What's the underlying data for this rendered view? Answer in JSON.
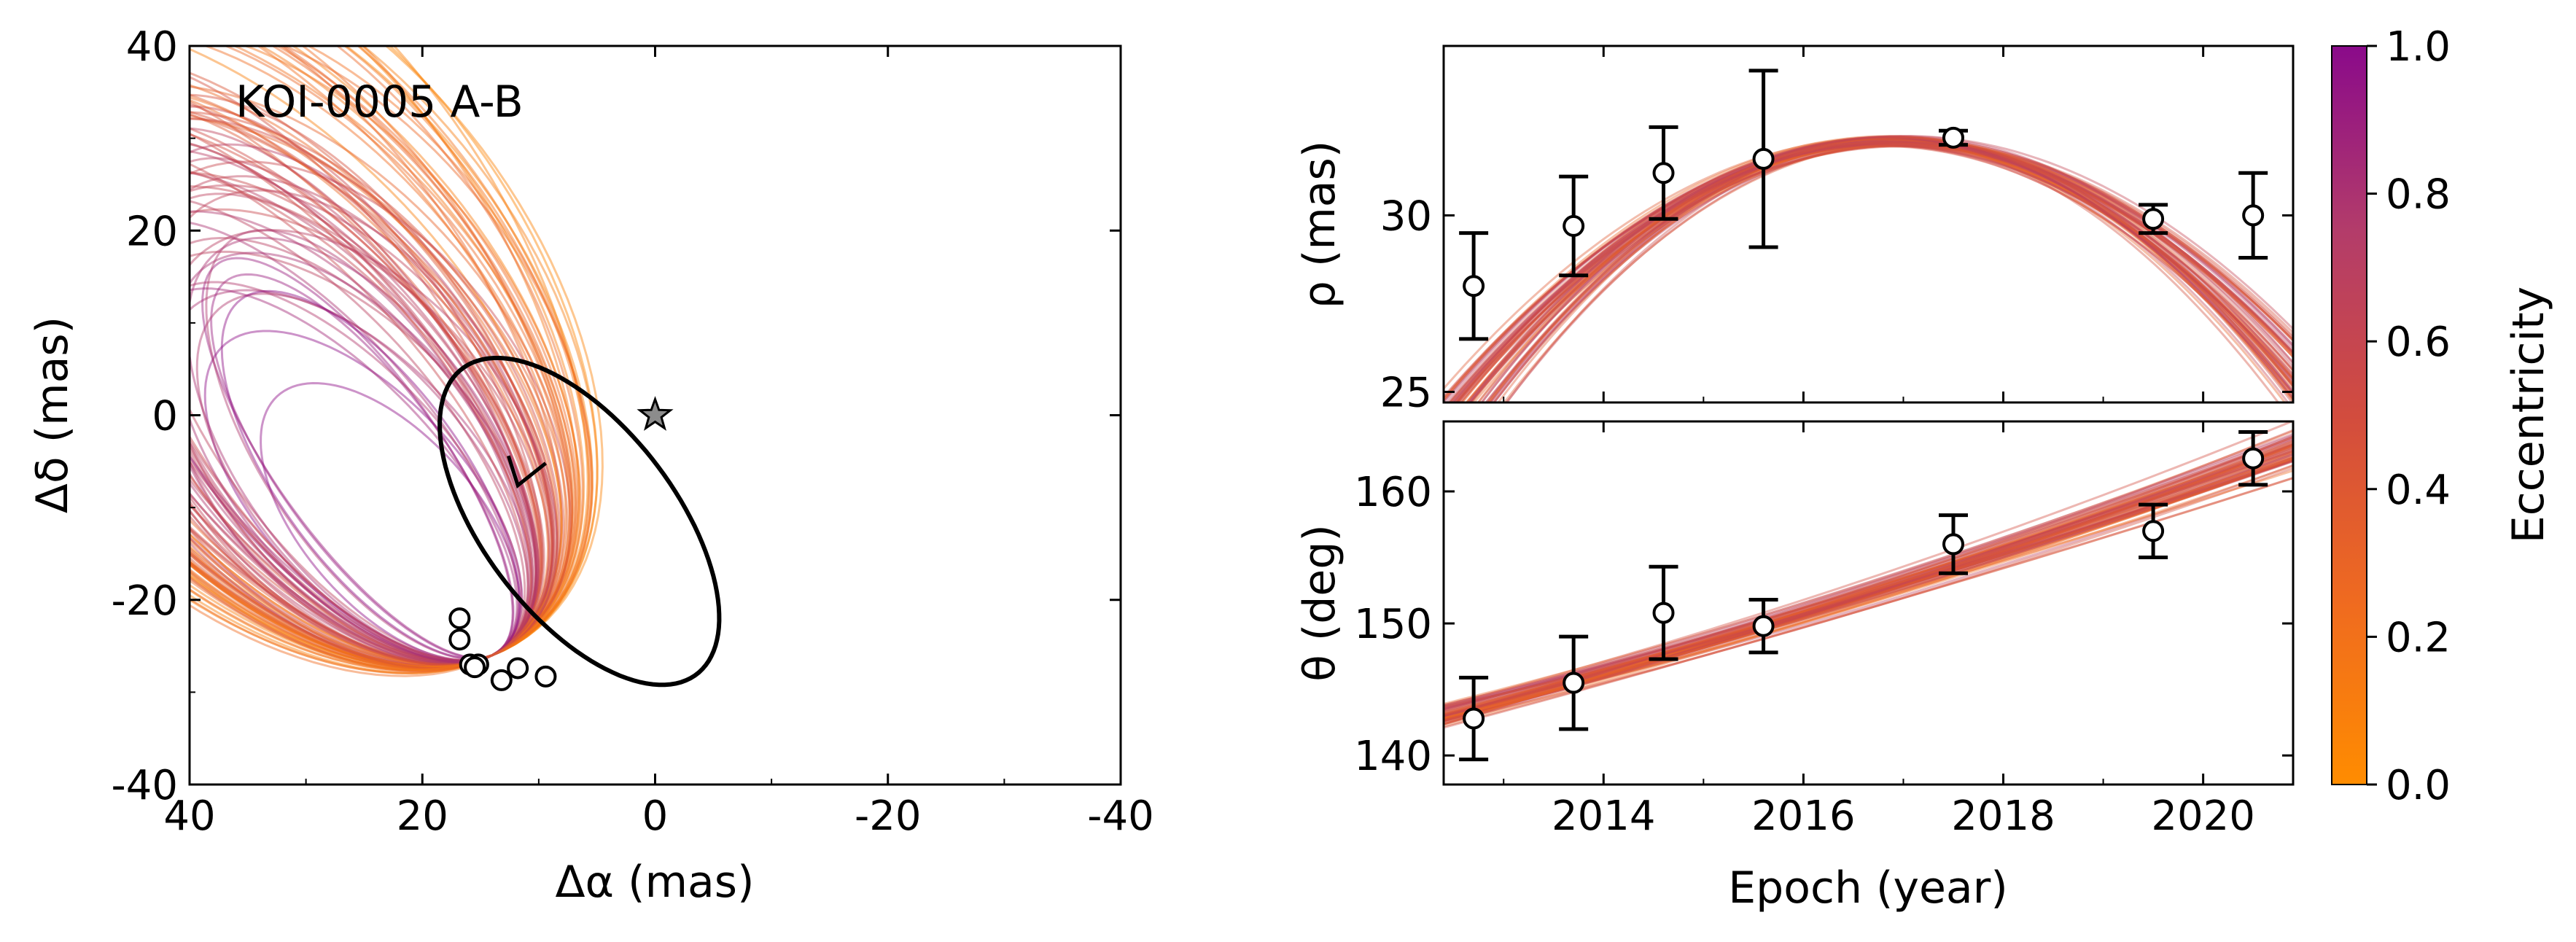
{
  "figure": {
    "colors": {
      "axes": "#000000",
      "best_fit": "#000000",
      "marker_fill": "#ffffff",
      "marker_edge": "#000000",
      "star_fill": "#8c8c8c"
    }
  },
  "chart_data": [
    {
      "id": "orbit-plot",
      "type": "line",
      "title": "",
      "annotation": "KOI-0005 A-B",
      "xlabel": "Δα (mas)",
      "ylabel": "Δδ (mas)",
      "xlim": [
        40,
        -40
      ],
      "ylim": [
        -40,
        40
      ],
      "xticks": [
        40,
        20,
        0,
        -20,
        -40
      ],
      "yticks": [
        40,
        20,
        0,
        -20,
        -40
      ],
      "grid": false,
      "star": {
        "x": 0,
        "y": 0
      },
      "direction": "counter-clockwise",
      "best_fit_orbit": {
        "center_x": 6.5,
        "center_y": -11.5,
        "semi_major": 19.5,
        "semi_minor": 8.8,
        "rotation_deg": 62
      },
      "orbit_sample_count": 80,
      "observations": [
        {
          "x": 16.8,
          "y": -22.0
        },
        {
          "x": 16.8,
          "y": -24.3
        },
        {
          "x": 15.9,
          "y": -27.0
        },
        {
          "x": 15.2,
          "y": -27.0
        },
        {
          "x": 15.5,
          "y": -27.3
        },
        {
          "x": 13.2,
          "y": -28.7
        },
        {
          "x": 11.8,
          "y": -27.4
        },
        {
          "x": 9.4,
          "y": -28.3
        }
      ]
    },
    {
      "id": "separation-plot",
      "type": "line",
      "title": "",
      "xlabel": "",
      "ylabel": "ρ (mas)",
      "xlim": [
        2012.4,
        2020.9
      ],
      "ylim": [
        24.7,
        34.8
      ],
      "xticks": [
        2014,
        2016,
        2018,
        2020
      ],
      "yticks": [
        25,
        30
      ],
      "grid": false,
      "model_peak": {
        "x": 2016.9,
        "y": 32.1
      },
      "observations": [
        {
          "x": 2012.7,
          "y": 28.0,
          "err": 1.5
        },
        {
          "x": 2013.7,
          "y": 29.7,
          "err": 1.4
        },
        {
          "x": 2014.6,
          "y": 31.2,
          "err": 1.3
        },
        {
          "x": 2015.6,
          "y": 31.6,
          "err": 2.5
        },
        {
          "x": 2017.5,
          "y": 32.2,
          "err": 0.2
        },
        {
          "x": 2019.5,
          "y": 29.9,
          "err": 0.4
        },
        {
          "x": 2020.5,
          "y": 30.0,
          "err": 1.2
        }
      ]
    },
    {
      "id": "position-angle-plot",
      "type": "line",
      "title": "",
      "xlabel": "Epoch (year)",
      "ylabel": "θ (deg)",
      "xlim": [
        2012.4,
        2020.9
      ],
      "ylim": [
        137.8,
        165.3
      ],
      "xticks": [
        2014,
        2016,
        2018,
        2020
      ],
      "yticks": [
        140,
        150,
        160
      ],
      "grid": false,
      "observations": [
        {
          "x": 2012.7,
          "y": 142.8,
          "err": 3.1
        },
        {
          "x": 2013.7,
          "y": 145.5,
          "err": 3.5
        },
        {
          "x": 2014.6,
          "y": 150.8,
          "err": 3.5
        },
        {
          "x": 2015.6,
          "y": 149.8,
          "err": 2.0
        },
        {
          "x": 2017.5,
          "y": 156.0,
          "err": 2.2
        },
        {
          "x": 2019.5,
          "y": 157.0,
          "err": 2.0
        },
        {
          "x": 2020.5,
          "y": 162.5,
          "err": 2.0
        }
      ]
    },
    {
      "id": "eccentricity-colorbar",
      "type": "heatmap",
      "title": "",
      "label": "Eccentricity",
      "range": [
        0.0,
        1.0
      ],
      "ticks": [
        "0.0",
        "0.2",
        "0.4",
        "0.6",
        "0.8",
        "1.0"
      ],
      "colormap": [
        "#ff8c00",
        "#ef6a20",
        "#d24c3e",
        "#b33c6a",
        "#8a0a8a"
      ]
    }
  ]
}
